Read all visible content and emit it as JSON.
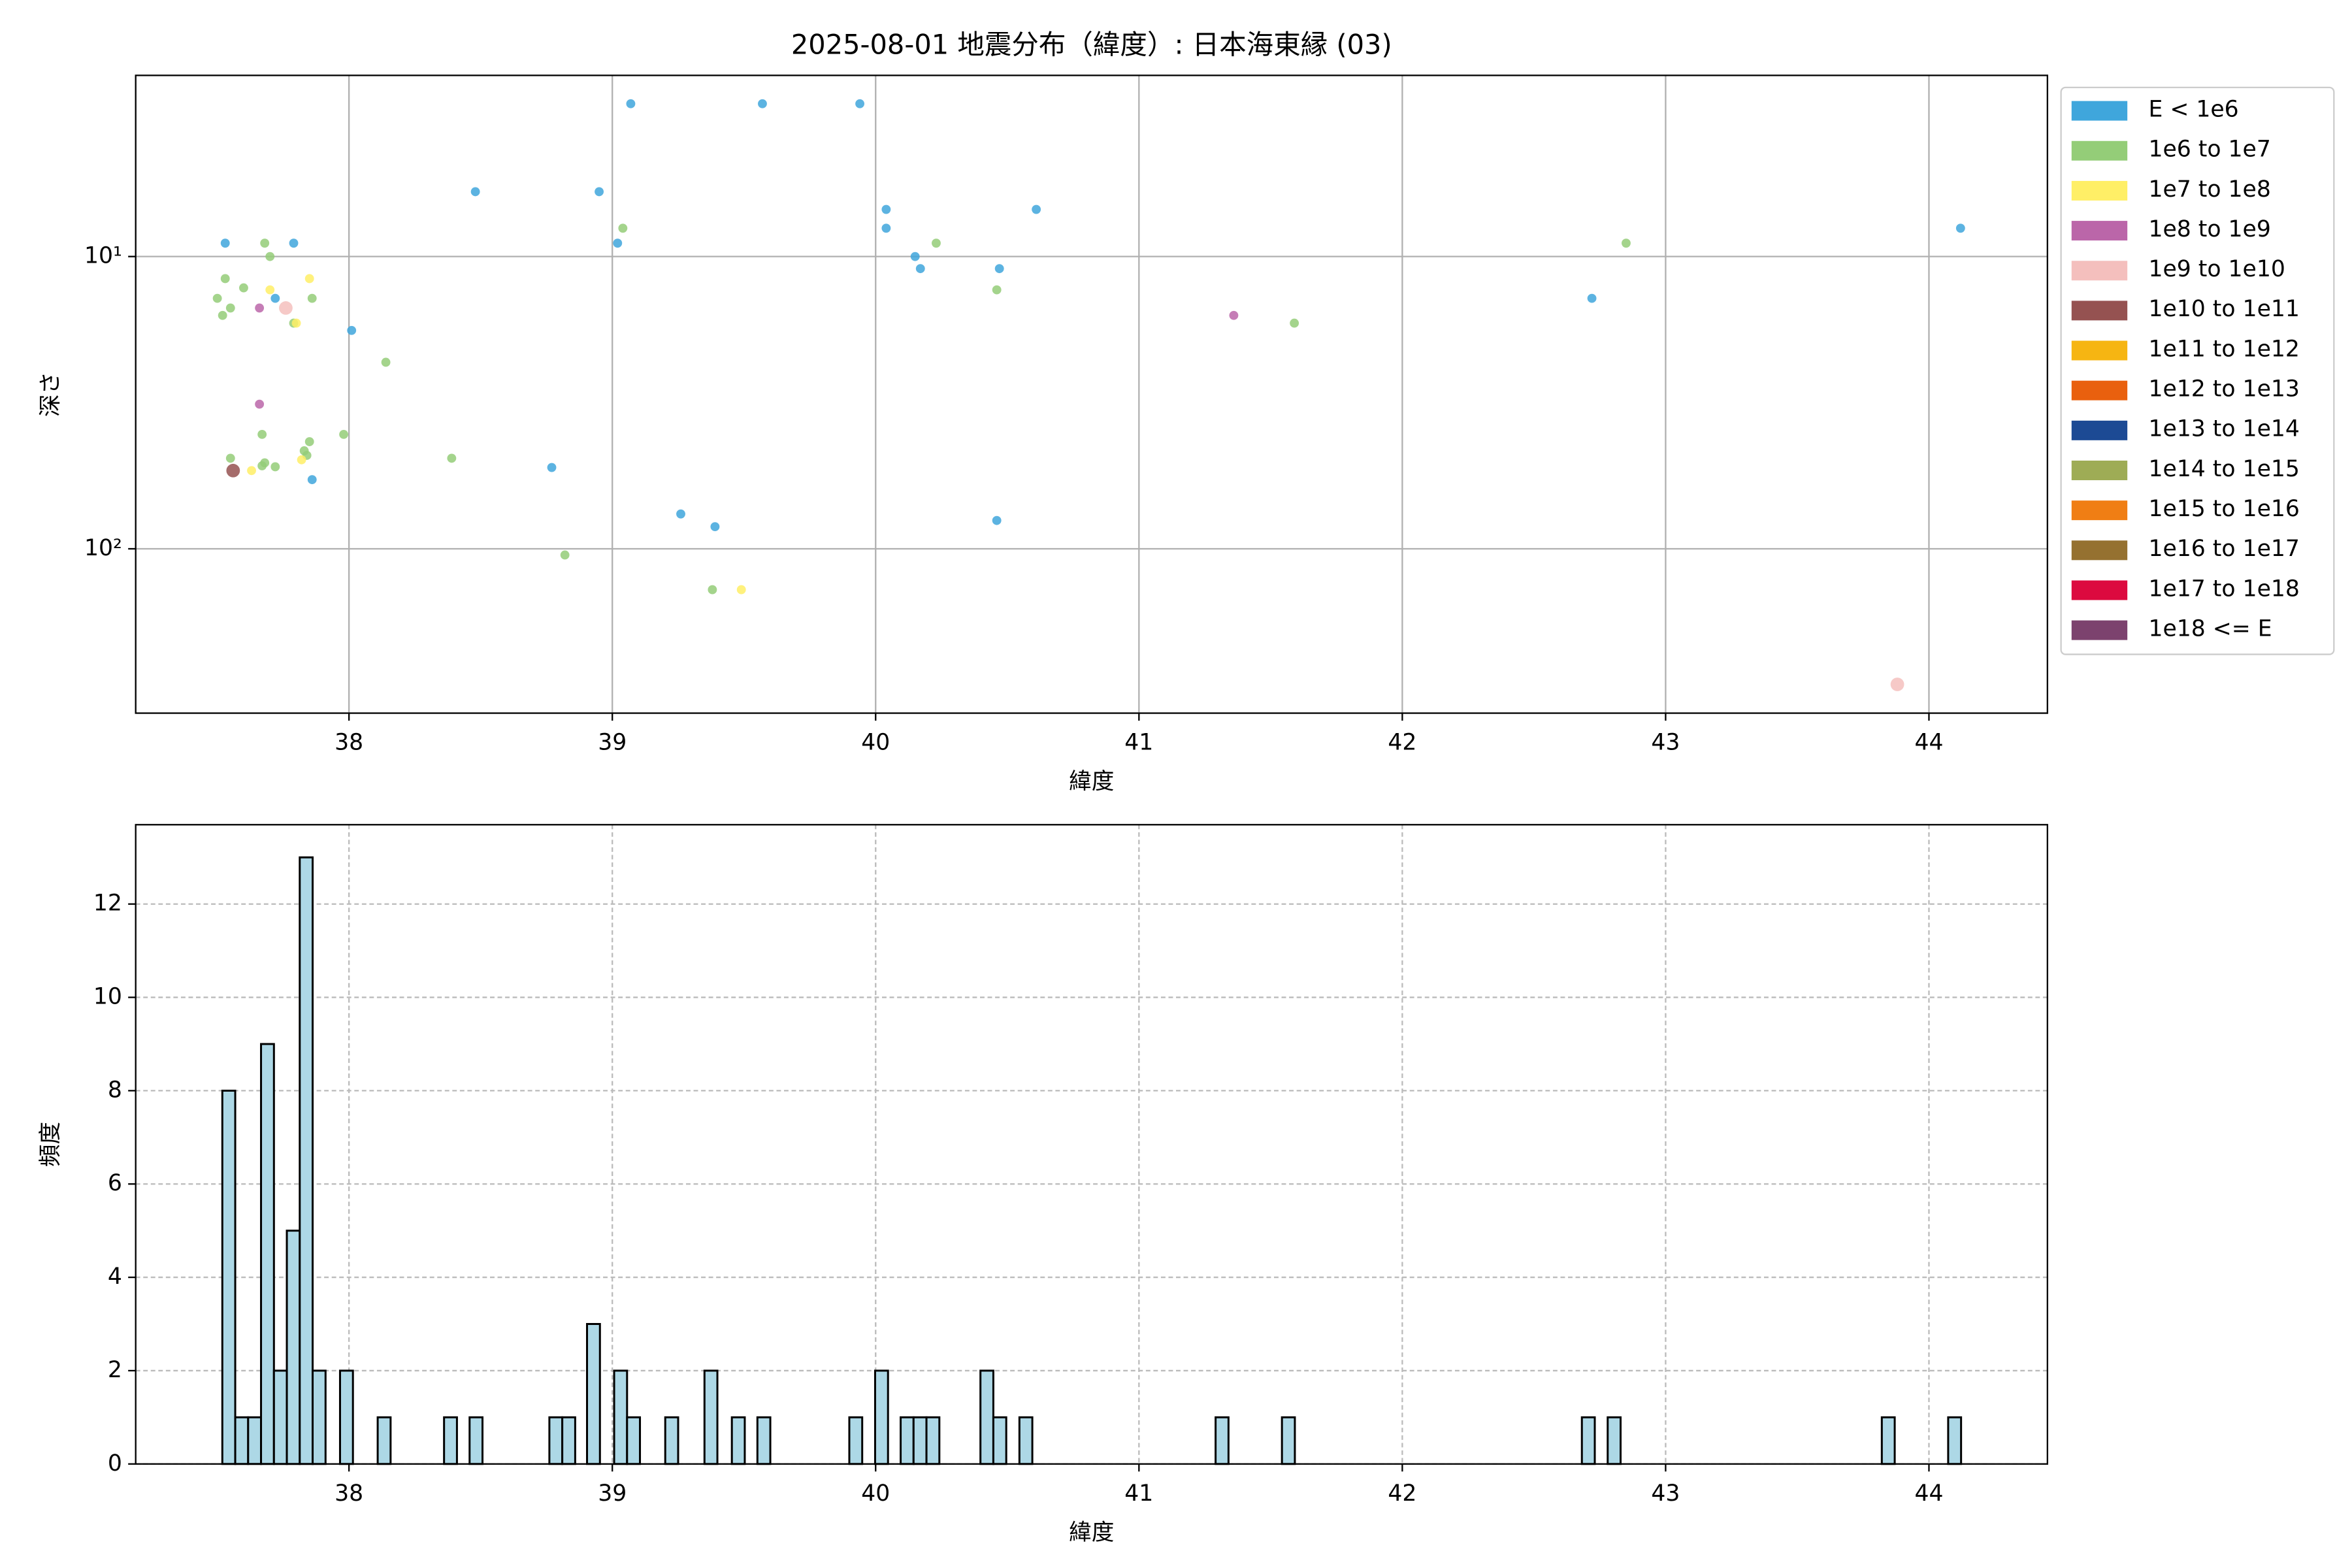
{
  "chart_data": [
    {
      "type": "scatter",
      "title": "2025-08-01 地震分布（緯度）: 日本海東縁 (03)",
      "x_label": "緯度",
      "y_label": "深さ",
      "xlim": [
        37.19,
        44.45
      ],
      "xticks": [
        38,
        39,
        40,
        41,
        42,
        43,
        44
      ],
      "yscale": "log",
      "ylim": [
        365,
        2.4
      ],
      "yticks": [
        {
          "value": 10,
          "label": "10¹"
        },
        {
          "value": 100,
          "label": "10²"
        }
      ],
      "grid": true,
      "grid_style": "solid",
      "legend": "outside upper right",
      "series": [
        {
          "name": "E < 1e6",
          "color": "#3fa6dc",
          "x": [
            37.53,
            37.79,
            37.72,
            38.01,
            38.48,
            38.77,
            38.95,
            39.02,
            39.07,
            39.26,
            39.39,
            39.57,
            39.94,
            40.04,
            40.04,
            40.15,
            40.17,
            40.47,
            40.46,
            40.61,
            42.72,
            44.12,
            37.86
          ],
          "values": [
            9,
            9,
            13.9,
            17.9,
            6,
            52.7,
            6,
            9,
            3,
            76,
            84,
            3,
            3,
            6.9,
            8,
            10,
            11,
            11,
            80,
            6.9,
            13.9,
            8,
            58
          ]
        },
        {
          "name": "1e6 to 1e7",
          "color": "#94cd78",
          "x": [
            37.5,
            37.53,
            37.55,
            37.52,
            37.6,
            37.68,
            37.7,
            37.86,
            37.79,
            38.14,
            37.67,
            37.55,
            37.68,
            37.72,
            37.84,
            37.83,
            37.85,
            37.98,
            38.39,
            39.04,
            38.82,
            39.38,
            40.23,
            40.46,
            41.59,
            42.85,
            37.67
          ],
          "values": [
            13.9,
            11.9,
            15,
            15.9,
            12.8,
            9,
            10,
            13.9,
            16.9,
            23,
            40.6,
            49,
            50.8,
            52.4,
            47.9,
            46.2,
            43,
            40.6,
            49,
            8,
            105,
            138,
            9,
            13,
            16.9,
            9,
            52
          ]
        },
        {
          "name": "1e7 to 1e8",
          "color": "#ffef66",
          "x": [
            37.7,
            37.85,
            37.8,
            37.63,
            37.82,
            39.49
          ],
          "values": [
            13,
            11.9,
            16.9,
            54,
            49.6,
            138
          ]
        },
        {
          "name": "1e8 to 1e9",
          "color": "#bb66a9",
          "x": [
            37.66,
            37.66,
            41.36
          ],
          "values": [
            15,
            32,
            15.9
          ]
        },
        {
          "name": "1e9 to 1e10",
          "color": "#f4bfbd",
          "x": [
            37.76,
            43.88
          ],
          "values": [
            15,
            291
          ]
        },
        {
          "name": "1e10 to 1e11",
          "color": "#955251",
          "x": [
            37.56
          ],
          "values": [
            54
          ]
        },
        {
          "name": "1e11 to 1e12",
          "color": "#f6b512",
          "x": [],
          "values": []
        },
        {
          "name": "1e12 to 1e13",
          "color": "#e9600e",
          "x": [],
          "values": []
        },
        {
          "name": "1e13 to 1e14",
          "color": "#1c4a94",
          "x": [],
          "values": []
        },
        {
          "name": "1e14 to 1e15",
          "color": "#9eac55",
          "x": [],
          "values": []
        },
        {
          "name": "1e15 to 1e16",
          "color": "#f07e14",
          "x": [],
          "values": []
        },
        {
          "name": "1e16 to 1e17",
          "color": "#957130",
          "x": [],
          "values": []
        },
        {
          "name": "1e17 to 1e18",
          "color": "#dc0a3f",
          "x": [],
          "values": []
        },
        {
          "name": "1e18 <= E",
          "color": "#7c426e",
          "x": [],
          "values": []
        }
      ]
    },
    {
      "type": "histogram",
      "x_label": "緯度",
      "y_label": "頻度",
      "xlim": [
        37.19,
        44.45
      ],
      "xticks": [
        38,
        39,
        40,
        41,
        42,
        43,
        44
      ],
      "ylim": [
        0,
        13.7
      ],
      "yticks": [
        0,
        2,
        4,
        6,
        8,
        10,
        12
      ],
      "grid": true,
      "grid_style": "dashed",
      "color": "#add8e6",
      "edgecolor": "#000000",
      "bins": [
        37.519,
        37.568,
        37.617,
        37.666,
        37.715,
        37.764,
        37.813,
        37.862,
        37.911,
        37.966,
        38.015,
        38.109,
        38.158,
        38.361,
        38.41,
        38.458,
        38.507,
        38.761,
        38.81,
        38.859,
        38.904,
        38.953,
        39.007,
        39.056,
        39.105,
        39.201,
        39.25,
        39.35,
        39.399,
        39.454,
        39.503,
        39.551,
        39.6,
        39.9,
        39.949,
        39.998,
        40.047,
        40.095,
        40.144,
        40.193,
        40.242,
        40.398,
        40.447,
        40.496,
        40.546,
        40.595,
        41.291,
        41.34,
        41.543,
        41.592,
        42.682,
        42.731,
        42.78,
        42.829,
        43.821,
        43.87,
        44.073,
        44.122
      ],
      "values": [
        8,
        1,
        1,
        9,
        2,
        5,
        13,
        2,
        0,
        2,
        0,
        1,
        0,
        1,
        0,
        1,
        0,
        1,
        1,
        0,
        3,
        0,
        2,
        1,
        0,
        1,
        0,
        2,
        0,
        1,
        0,
        1,
        0,
        1,
        0,
        2,
        0,
        1,
        1,
        1,
        0,
        2,
        1,
        0,
        1,
        0,
        1,
        0,
        1,
        0,
        1,
        0,
        1,
        0,
        1,
        0,
        1
      ]
    }
  ]
}
